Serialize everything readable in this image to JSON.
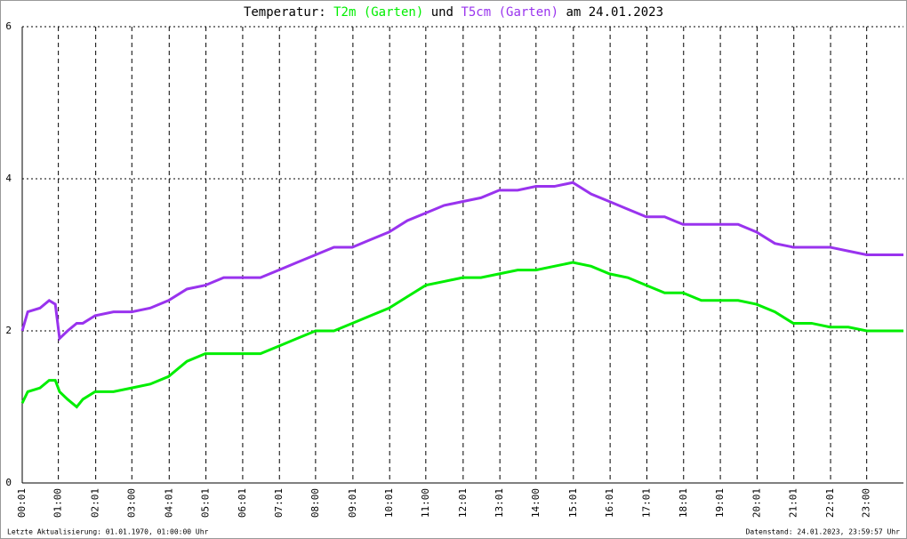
{
  "chart_data": {
    "type": "line",
    "title": {
      "prefix": "Temperatur:",
      "middle": "und",
      "suffix": "am 24.01.2023"
    },
    "footer_left": "Letzte Aktualisierung: 01.01.1970, 01:00:00 Uhr",
    "footer_right": "Datenstand: 24.01.2023, 23:59:57 Uhr",
    "grid": true,
    "xlim": [
      1,
      1440
    ],
    "ylim": [
      0,
      6
    ],
    "yticks": [
      0,
      2,
      4,
      6
    ],
    "xticks": [
      {
        "value": 1,
        "label": "00:01"
      },
      {
        "value": 60,
        "label": "01:00"
      },
      {
        "value": 121,
        "label": "02:01"
      },
      {
        "value": 180,
        "label": "03:00"
      },
      {
        "value": 241,
        "label": "04:01"
      },
      {
        "value": 301,
        "label": "05:01"
      },
      {
        "value": 361,
        "label": "06:01"
      },
      {
        "value": 421,
        "label": "07:01"
      },
      {
        "value": 480,
        "label": "08:00"
      },
      {
        "value": 541,
        "label": "09:01"
      },
      {
        "value": 601,
        "label": "10:01"
      },
      {
        "value": 660,
        "label": "11:00"
      },
      {
        "value": 721,
        "label": "12:01"
      },
      {
        "value": 781,
        "label": "13:01"
      },
      {
        "value": 840,
        "label": "14:00"
      },
      {
        "value": 901,
        "label": "15:01"
      },
      {
        "value": 961,
        "label": "16:01"
      },
      {
        "value": 1021,
        "label": "17:01"
      },
      {
        "value": 1081,
        "label": "18:01"
      },
      {
        "value": 1141,
        "label": "19:01"
      },
      {
        "value": 1201,
        "label": "20:01"
      },
      {
        "value": 1261,
        "label": "21:01"
      },
      {
        "value": 1321,
        "label": "22:01"
      },
      {
        "value": 1380,
        "label": "23:00"
      }
    ],
    "x": [
      1,
      10,
      30,
      45,
      55,
      62,
      75,
      90,
      100,
      120,
      150,
      180,
      210,
      240,
      270,
      300,
      330,
      360,
      390,
      420,
      450,
      480,
      510,
      540,
      570,
      600,
      630,
      660,
      690,
      720,
      750,
      780,
      810,
      840,
      870,
      900,
      930,
      960,
      990,
      1020,
      1050,
      1080,
      1110,
      1140,
      1170,
      1200,
      1230,
      1260,
      1290,
      1320,
      1350,
      1380,
      1410,
      1440
    ],
    "series": [
      {
        "name": "T2m (Garten)",
        "color": "#00ee00",
        "values": [
          1.05,
          1.2,
          1.25,
          1.35,
          1.35,
          1.2,
          1.1,
          1.0,
          1.1,
          1.2,
          1.2,
          1.25,
          1.3,
          1.4,
          1.6,
          1.7,
          1.7,
          1.7,
          1.7,
          1.8,
          1.9,
          2.0,
          2.0,
          2.1,
          2.2,
          2.3,
          2.45,
          2.6,
          2.65,
          2.7,
          2.7,
          2.75,
          2.8,
          2.8,
          2.85,
          2.9,
          2.85,
          2.75,
          2.7,
          2.6,
          2.5,
          2.5,
          2.4,
          2.4,
          2.4,
          2.35,
          2.25,
          2.1,
          2.1,
          2.05,
          2.05,
          2.0,
          2.0,
          2.0
        ]
      },
      {
        "name": "T5cm (Garten)",
        "color": "#9933ee",
        "values": [
          2.0,
          2.25,
          2.3,
          2.4,
          2.35,
          1.9,
          2.0,
          2.1,
          2.1,
          2.2,
          2.25,
          2.25,
          2.3,
          2.4,
          2.55,
          2.6,
          2.7,
          2.7,
          2.7,
          2.8,
          2.9,
          3.0,
          3.1,
          3.1,
          3.2,
          3.3,
          3.45,
          3.55,
          3.65,
          3.7,
          3.75,
          3.85,
          3.85,
          3.9,
          3.9,
          3.95,
          3.8,
          3.7,
          3.6,
          3.5,
          3.5,
          3.4,
          3.4,
          3.4,
          3.4,
          3.3,
          3.15,
          3.1,
          3.1,
          3.1,
          3.05,
          3.0,
          3.0,
          3.0
        ]
      }
    ]
  }
}
